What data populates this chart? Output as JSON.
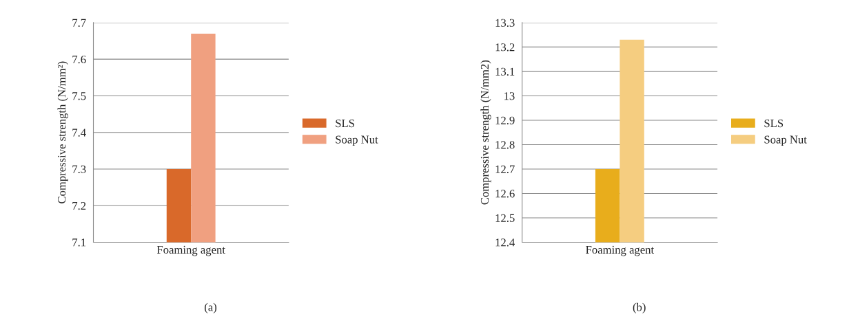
{
  "chart_data": [
    {
      "type": "bar",
      "categories": [
        "Foaming agent"
      ],
      "ylabel": "Compressive strength (N/mm²)",
      "ylim": [
        7.1,
        7.7
      ],
      "yticks": [
        7.1,
        7.2,
        7.3,
        7.4,
        7.5,
        7.6,
        7.7
      ],
      "grid": "y",
      "legend": "right",
      "series": [
        {
          "name": "SLS",
          "color": "#d9692a",
          "values": [
            7.3
          ]
        },
        {
          "name": "Soap Nut",
          "color": "#f0a080",
          "values": [
            7.67
          ]
        }
      ],
      "annotations": [
        "(a)"
      ]
    },
    {
      "type": "bar",
      "categories": [
        "Foaming agent"
      ],
      "ylabel": "Compressive strength (N/mm2)",
      "ylim": [
        12.4,
        13.3
      ],
      "yticks": [
        12.4,
        12.5,
        12.6,
        12.7,
        12.8,
        12.9,
        13,
        13.1,
        13.2,
        13.3
      ],
      "grid": "y",
      "legend": "right",
      "series": [
        {
          "name": "SLS",
          "color": "#e8ad1c",
          "values": [
            12.7
          ]
        },
        {
          "name": "Soap Nut",
          "color": "#f5cd80",
          "values": [
            13.23
          ]
        }
      ],
      "annotations": [
        "(b)"
      ]
    }
  ]
}
